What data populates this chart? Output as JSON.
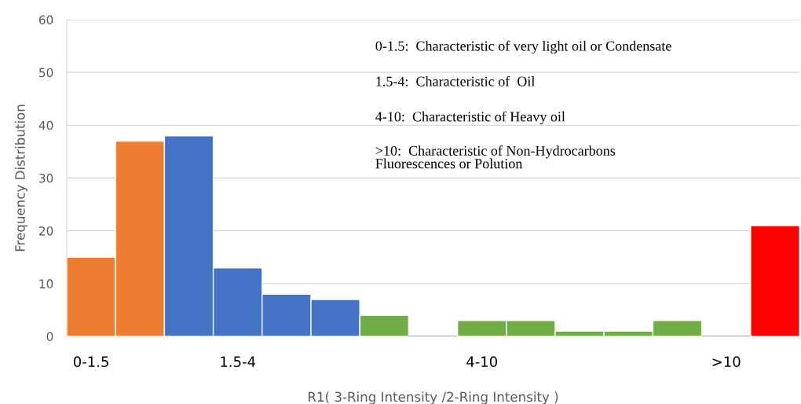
{
  "chart_data": {
    "type": "bar",
    "xlabel": "R1( 3-Ring Intensity /2-Ring Intensity )",
    "ylabel": "Frequency Distribution",
    "categories": [
      "0-1.5",
      null,
      null,
      "1.5-4",
      null,
      null,
      null,
      null,
      "4-10",
      null,
      null,
      null,
      null,
      ">10",
      null
    ],
    "values": [
      15,
      37,
      38,
      13,
      8,
      7,
      4,
      0,
      3,
      3,
      1,
      1,
      3,
      0,
      21
    ],
    "colors": [
      "#ed7d31",
      "#ed7d31",
      "#4472c4",
      "#4472c4",
      "#4472c4",
      "#4472c4",
      "#70ad47",
      "#70ad47",
      "#70ad47",
      "#70ad47",
      "#70ad47",
      "#70ad47",
      "#70ad47",
      "#70ad47",
      "#ff0000"
    ],
    "ylim": [
      0,
      60
    ],
    "yticks": [
      0,
      10,
      20,
      30,
      40,
      50,
      60
    ],
    "grid": "y",
    "annotations": [
      "0-1.5:  Characteristic of very light oil or Condensate",
      "1.5-4:  Characteristic of  Oil",
      "4-10:  Characteristic of Heavy oil",
      ">10:  Characteristic of Non-Hydrocarbons\nFluorescences or Polution"
    ]
  }
}
